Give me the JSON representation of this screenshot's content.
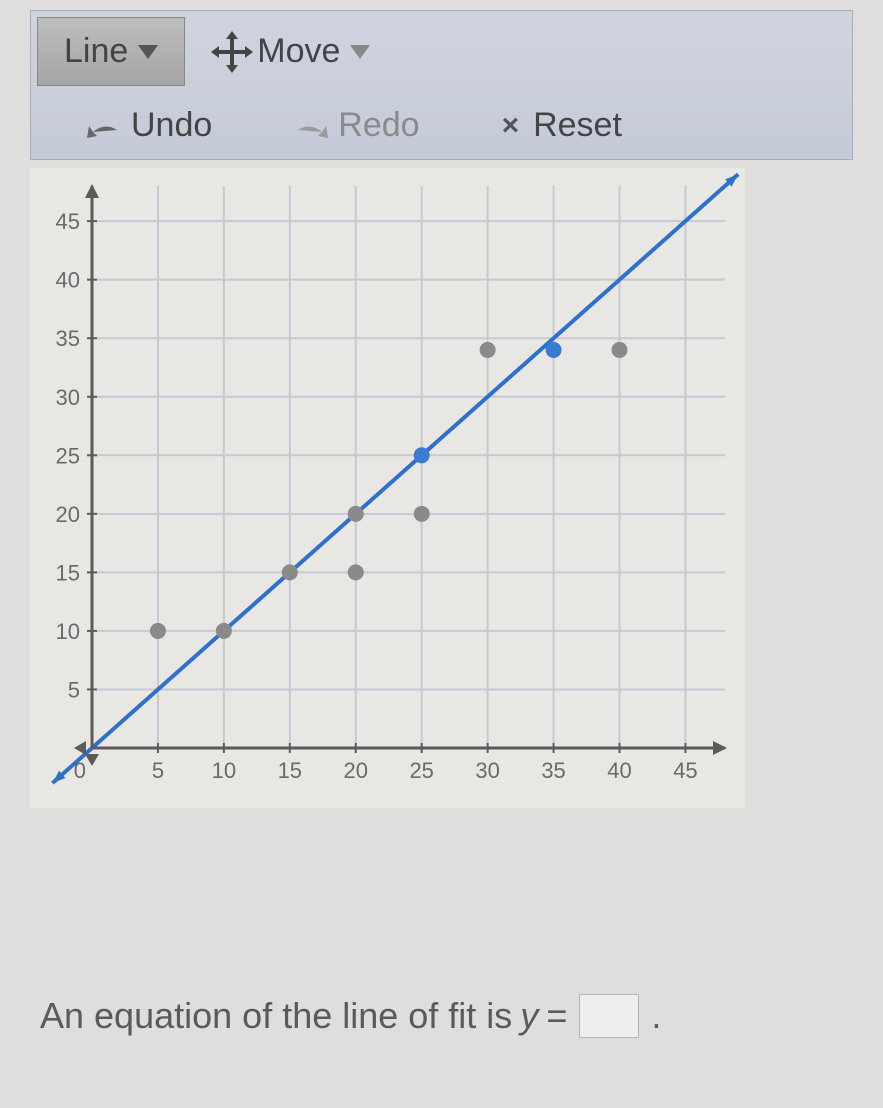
{
  "toolbar": {
    "line_label": "Line",
    "move_label": "Move",
    "undo_label": "Undo",
    "redo_label": "Redo",
    "reset_label": "Reset"
  },
  "chart": {
    "type": "scatter",
    "xlim": [
      0,
      48
    ],
    "ylim": [
      0,
      48
    ],
    "xtick_step": 5,
    "ytick_step": 5,
    "xtick_labels": [
      "5",
      "10",
      "15",
      "20",
      "25",
      "30",
      "35",
      "40",
      "45"
    ],
    "ytick_labels": [
      "5",
      "10",
      "15",
      "20",
      "25",
      "30",
      "35",
      "40",
      "45"
    ],
    "origin_label": "0",
    "grid_color": "#c6c9d2",
    "axis_color": "#5b5b5b",
    "background_color": "#e8e7e4",
    "tick_fontsize": 22,
    "tick_color": "#6a6a6a",
    "points_gray": [
      [
        5,
        10
      ],
      [
        10,
        10
      ],
      [
        15,
        15
      ],
      [
        20,
        15
      ],
      [
        20,
        20
      ],
      [
        25,
        20
      ],
      [
        30,
        34
      ],
      [
        40,
        34
      ]
    ],
    "point_gray_color": "#8a8a8a",
    "points_blue": [
      [
        25,
        25
      ],
      [
        35,
        34
      ]
    ],
    "point_blue_color": "#3b7bd1",
    "point_radius": 8,
    "fit_line": {
      "slope": 1,
      "intercept": 0,
      "x0": -3,
      "x1": 49
    },
    "line_color": "#2f71c9",
    "line_width": 4
  },
  "question": {
    "prefix": "An equation of the line of fit is ",
    "var": "y",
    "equals": " = ",
    "suffix": "."
  }
}
